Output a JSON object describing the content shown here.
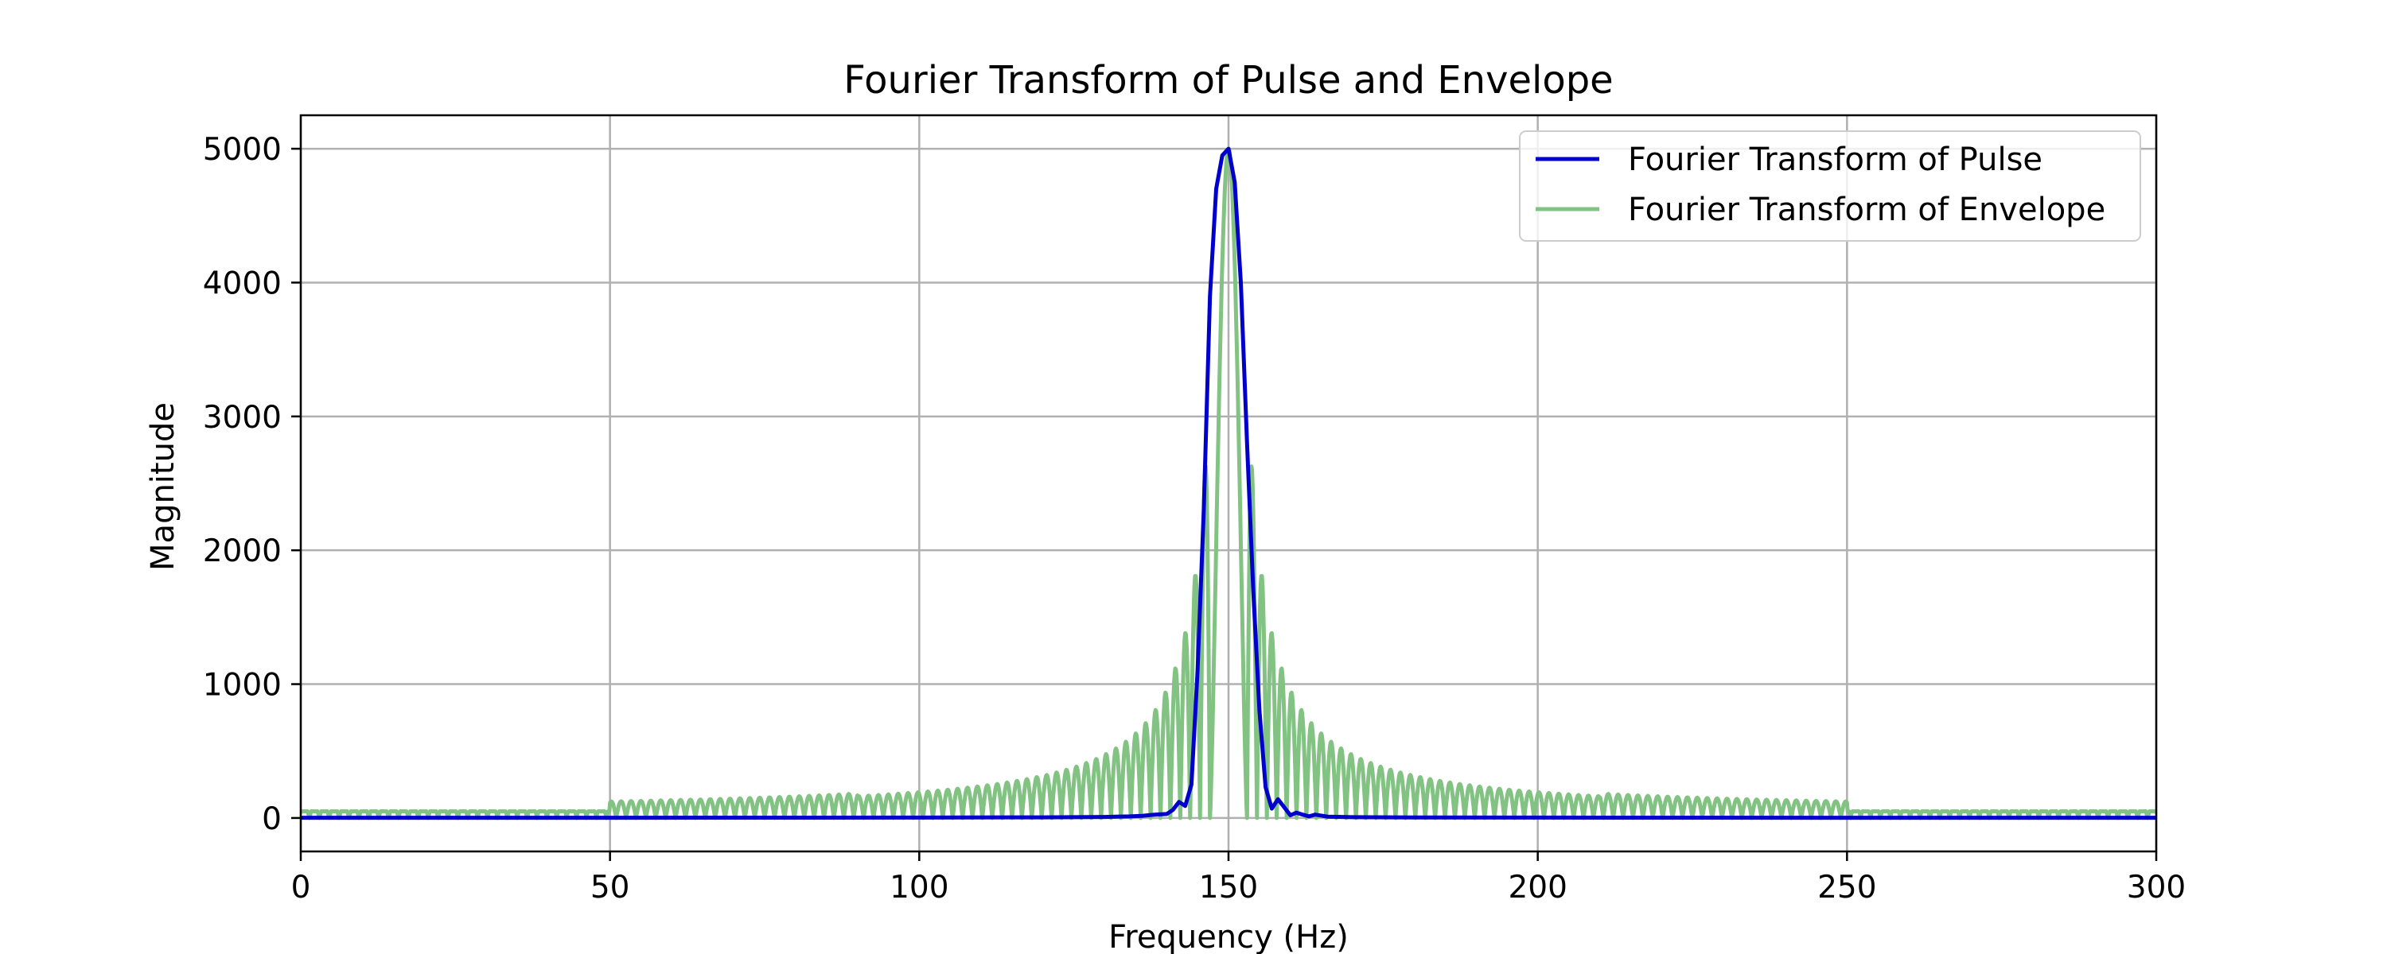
{
  "chart_data": {
    "type": "line",
    "title": "Fourier Transform of Pulse and Envelope",
    "xlabel": "Frequency (Hz)",
    "ylabel": "Magnitude",
    "xlim": [
      0,
      300
    ],
    "ylim": [
      -250,
      5250
    ],
    "xticks": [
      0,
      50,
      100,
      150,
      200,
      250,
      300
    ],
    "yticks": [
      0,
      1000,
      2000,
      3000,
      4000,
      5000
    ],
    "grid": true,
    "legend_position": "upper-right",
    "colors": {
      "pulse": "#0000cc",
      "envelope": "#82c282",
      "axes": "#000000",
      "grid": "#b0b0b0"
    },
    "series": [
      {
        "name": "Fourier Transform of Pulse",
        "color": "#0000cc",
        "points": [
          [
            0,
            2
          ],
          [
            50,
            2
          ],
          [
            100,
            3
          ],
          [
            120,
            5
          ],
          [
            130,
            8
          ],
          [
            134,
            12
          ],
          [
            136,
            16
          ],
          [
            138,
            25
          ],
          [
            140,
            30
          ],
          [
            141,
            60
          ],
          [
            142,
            120
          ],
          [
            143,
            90
          ],
          [
            144,
            250
          ],
          [
            145,
            1100
          ],
          [
            146,
            2300
          ],
          [
            147,
            3900
          ],
          [
            148,
            4700
          ],
          [
            149,
            4950
          ],
          [
            150,
            5000
          ],
          [
            151,
            4750
          ],
          [
            152,
            4000
          ],
          [
            153,
            2800
          ],
          [
            154,
            1700
          ],
          [
            155,
            800
          ],
          [
            156,
            230
          ],
          [
            157,
            70
          ],
          [
            158,
            140
          ],
          [
            159,
            80
          ],
          [
            160,
            20
          ],
          [
            161,
            40
          ],
          [
            162,
            25
          ],
          [
            163,
            12
          ],
          [
            164,
            25
          ],
          [
            166,
            10
          ],
          [
            170,
            6
          ],
          [
            180,
            4
          ],
          [
            200,
            3
          ],
          [
            250,
            2
          ],
          [
            300,
            2
          ]
        ]
      },
      {
        "name": "Fourier Transform of Envelope",
        "color": "#82c282",
        "model": {
          "center": 150,
          "peak": 5000,
          "main_halfwidth": 3,
          "lobe_period": 1.6,
          "envelope_coeff": 10500,
          "envelope_exponent": 1.05,
          "floor": 40
        }
      }
    ]
  }
}
